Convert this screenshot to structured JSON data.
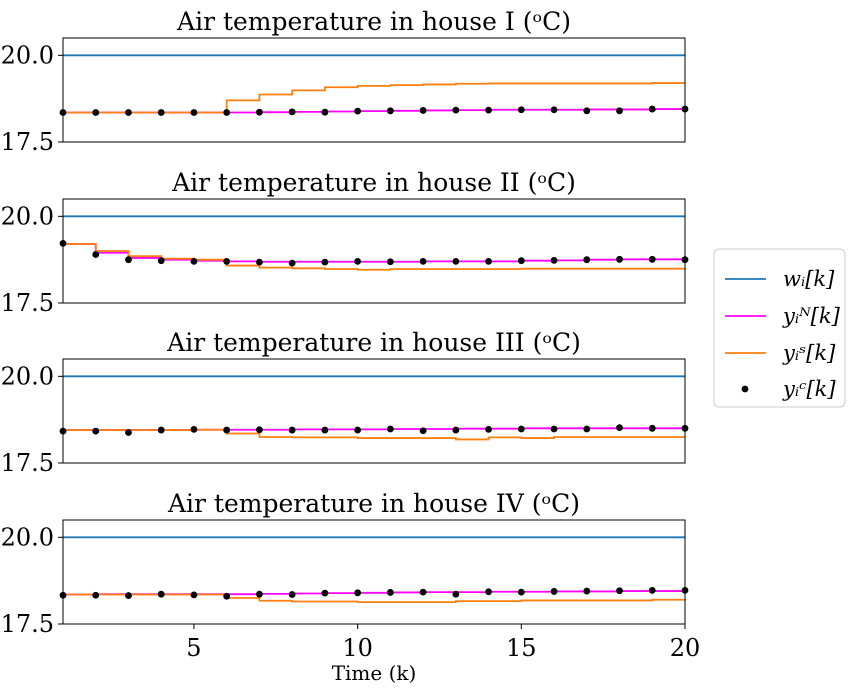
{
  "chart_data": {
    "type": "line",
    "colors": {
      "w": "#1f77b4",
      "yN": "#ff00ff",
      "yS": "#ff7f0e",
      "yC": "#000000"
    },
    "x": [
      1,
      2,
      3,
      4,
      5,
      6,
      7,
      8,
      9,
      10,
      11,
      12,
      13,
      14,
      15,
      16,
      17,
      18,
      19,
      20
    ],
    "xlim": [
      1,
      20
    ],
    "ylim": [
      17.5,
      20.5
    ],
    "yticks": [
      "17.5",
      "20.0"
    ],
    "xticks": [
      "5",
      "10",
      "15",
      "20"
    ],
    "xlabel": "Time (k)",
    "legend": {
      "placement": "center-right",
      "entries": [
        {
          "key": "w",
          "label": "wᵢ[k]"
        },
        {
          "key": "yN",
          "label": "yᵢᴺ[k]"
        },
        {
          "key": "yS",
          "label": "yᵢˢ[k]"
        },
        {
          "key": "yC",
          "label": "yᵢᶜ[k]"
        }
      ]
    },
    "panels": [
      {
        "title": "Air temperature in house I (ᵒC)",
        "series": [
          {
            "key": "w",
            "values": [
              20,
              20,
              20,
              20,
              20,
              20,
              20,
              20,
              20,
              20,
              20,
              20,
              20,
              20,
              20,
              20,
              20,
              20,
              20,
              20
            ]
          },
          {
            "key": "yN",
            "values": [
              18.35,
              18.35,
              18.35,
              18.35,
              18.35,
              18.35,
              18.36,
              18.37,
              18.38,
              18.39,
              18.4,
              18.41,
              18.42,
              18.43,
              18.43,
              18.43,
              18.44,
              18.44,
              18.45,
              18.46
            ]
          },
          {
            "key": "yS",
            "values": [
              18.35,
              18.35,
              18.35,
              18.35,
              18.35,
              18.7,
              18.87,
              18.99,
              19.08,
              19.12,
              19.14,
              19.16,
              19.18,
              19.19,
              19.19,
              19.19,
              19.19,
              19.19,
              19.2,
              19.2
            ]
          },
          {
            "key": "yC",
            "values": [
              18.35,
              18.35,
              18.35,
              18.35,
              18.35,
              18.35,
              18.36,
              18.37,
              18.36,
              18.39,
              18.4,
              18.41,
              18.42,
              18.42,
              18.43,
              18.43,
              18.4,
              18.4,
              18.45,
              18.45
            ]
          }
        ]
      },
      {
        "title": "Air temperature in house II (ᵒC)",
        "series": [
          {
            "key": "w",
            "values": [
              20,
              20,
              20,
              20,
              20,
              20,
              20,
              20,
              20,
              20,
              20,
              20,
              20,
              20,
              20,
              20,
              20,
              20,
              20,
              20
            ]
          },
          {
            "key": "yN",
            "values": [
              19.2,
              18.95,
              18.8,
              18.75,
              18.72,
              18.7,
              18.69,
              18.69,
              18.69,
              18.69,
              18.69,
              18.7,
              18.7,
              18.7,
              18.72,
              18.73,
              18.75,
              18.76,
              18.76,
              18.75
            ]
          },
          {
            "key": "yS",
            "values": [
              19.2,
              19.0,
              18.85,
              18.78,
              18.75,
              18.58,
              18.52,
              18.5,
              18.48,
              18.46,
              18.48,
              18.48,
              18.48,
              18.48,
              18.49,
              18.49,
              18.49,
              18.49,
              18.49,
              18.5
            ]
          },
          {
            "key": "yC",
            "values": [
              19.22,
              18.9,
              18.75,
              18.72,
              18.7,
              18.7,
              18.68,
              18.65,
              18.68,
              18.7,
              18.69,
              18.7,
              18.7,
              18.7,
              18.72,
              18.73,
              18.75,
              18.76,
              18.76,
              18.75
            ]
          }
        ]
      },
      {
        "title": "Air temperature in house III (ᵒC)",
        "series": [
          {
            "key": "w",
            "values": [
              20,
              20,
              20,
              20,
              20,
              20,
              20,
              20,
              20,
              20,
              20,
              20,
              20,
              20,
              20,
              20,
              20,
              20,
              20,
              20
            ]
          },
          {
            "key": "yN",
            "values": [
              18.45,
              18.45,
              18.45,
              18.45,
              18.46,
              18.46,
              18.46,
              18.47,
              18.47,
              18.47,
              18.48,
              18.48,
              18.49,
              18.49,
              18.5,
              18.5,
              18.5,
              18.5,
              18.5,
              18.5
            ]
          },
          {
            "key": "yS",
            "values": [
              18.45,
              18.45,
              18.45,
              18.45,
              18.46,
              18.35,
              18.25,
              18.24,
              18.24,
              18.22,
              18.22,
              18.22,
              18.18,
              18.24,
              18.22,
              18.25,
              18.25,
              18.25,
              18.25,
              18.25
            ]
          },
          {
            "key": "yC",
            "values": [
              18.42,
              18.42,
              18.38,
              18.45,
              18.47,
              18.45,
              18.46,
              18.45,
              18.45,
              18.45,
              18.48,
              18.43,
              18.45,
              18.47,
              18.48,
              18.48,
              18.48,
              18.52,
              18.5,
              18.5
            ]
          }
        ]
      },
      {
        "title": "Air temperature in house IV (ᵒC)",
        "series": [
          {
            "key": "w",
            "values": [
              20,
              20,
              20,
              20,
              20,
              20,
              20,
              20,
              20,
              20,
              20,
              20,
              20,
              20,
              20,
              20,
              20,
              20,
              20,
              20
            ]
          },
          {
            "key": "yN",
            "values": [
              18.35,
              18.36,
              18.36,
              18.36,
              18.36,
              18.36,
              18.37,
              18.38,
              18.39,
              18.4,
              18.41,
              18.42,
              18.42,
              18.43,
              18.43,
              18.44,
              18.44,
              18.45,
              18.45,
              18.46
            ]
          },
          {
            "key": "yS",
            "values": [
              18.35,
              18.35,
              18.35,
              18.35,
              18.35,
              18.25,
              18.17,
              18.15,
              18.15,
              18.13,
              18.13,
              18.13,
              18.16,
              18.16,
              18.18,
              18.18,
              18.18,
              18.18,
              18.2,
              18.22
            ]
          },
          {
            "key": "yC",
            "values": [
              18.33,
              18.33,
              18.32,
              18.36,
              18.34,
              18.3,
              18.36,
              18.35,
              18.39,
              18.4,
              18.41,
              18.42,
              18.36,
              18.43,
              18.42,
              18.44,
              18.45,
              18.46,
              18.47,
              18.47
            ]
          }
        ]
      }
    ]
  }
}
